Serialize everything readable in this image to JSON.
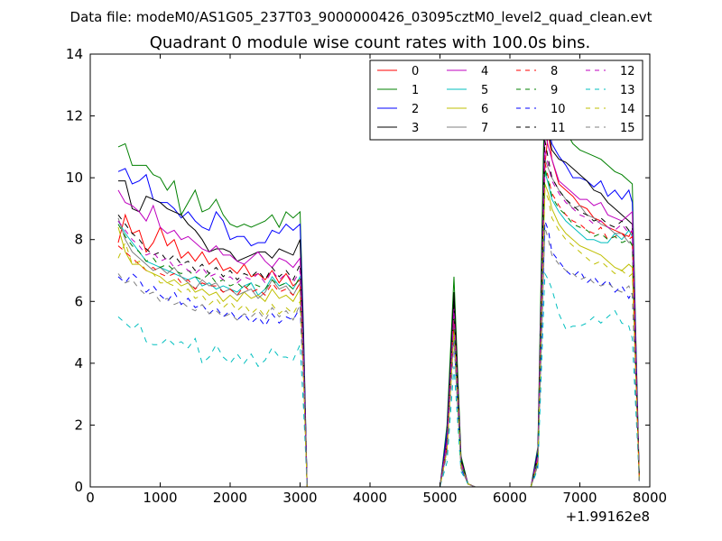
{
  "figure": {
    "supertitle": "Data file: modeM0/AS1G05_237T03_9000000426_03095cztM0_level2_quad_clean.evt"
  },
  "chart_data": {
    "type": "line",
    "title": "Quadrant 0 module wise count rates with 100.0s bins.",
    "xlabel": "",
    "ylabel": "",
    "x_offset_label": "+1.99162e8",
    "xlim": [
      0,
      8000
    ],
    "ylim": [
      0,
      14
    ],
    "xticks": [
      "0",
      "1000",
      "2000",
      "3000",
      "4000",
      "5000",
      "6000",
      "7000",
      "8000"
    ],
    "yticks": [
      "0",
      "2",
      "4",
      "6",
      "8",
      "10",
      "12",
      "14"
    ],
    "grid": false,
    "legend_position": "top-right",
    "legend_columns": 4,
    "x": [
      400,
      500,
      600,
      700,
      800,
      900,
      1000,
      1100,
      1200,
      1300,
      1400,
      1500,
      1600,
      1700,
      1800,
      1900,
      2000,
      2100,
      2200,
      2300,
      2400,
      2500,
      2600,
      2700,
      2800,
      2900,
      3000,
      3050,
      3100,
      3200,
      3400,
      3600,
      3800,
      4000,
      4200,
      4400,
      4600,
      4800,
      5000,
      5100,
      5200,
      5300,
      5400,
      5500,
      5600,
      5800,
      6000,
      6200,
      6300,
      6400,
      6500,
      6550,
      6600,
      6700,
      6800,
      6900,
      7000,
      7100,
      7200,
      7300,
      7400,
      7500,
      7600,
      7700,
      7750,
      7800,
      7850
    ],
    "series": [
      {
        "name": "0",
        "color": "#ff0000",
        "dash": "solid",
        "values": [
          7.9,
          8.8,
          8.2,
          8.3,
          7.6,
          7.9,
          8.4,
          7.8,
          8.0,
          7.4,
          7.6,
          7.3,
          7.6,
          7.2,
          7.4,
          7.0,
          7.1,
          6.9,
          7.2,
          6.8,
          6.9,
          6.7,
          7.0,
          6.6,
          6.9,
          6.5,
          6.7,
          4.0,
          0,
          0,
          0,
          0,
          0,
          0,
          0,
          0,
          0,
          0,
          0,
          1.4,
          5.4,
          0.8,
          0.1,
          0,
          0,
          0,
          0,
          0,
          0,
          0.9,
          10.4,
          11.5,
          10.6,
          9.8,
          9.6,
          9.4,
          9.1,
          9.0,
          8.7,
          8.6,
          8.4,
          8.3,
          8.2,
          8.1,
          8.3,
          4.0,
          0.3
        ]
      },
      {
        "name": "1",
        "color": "#008000",
        "dash": "solid",
        "values": [
          11.0,
          11.1,
          10.4,
          10.4,
          10.4,
          10.1,
          10.0,
          9.6,
          9.9,
          8.8,
          9.2,
          9.6,
          8.9,
          9.0,
          9.3,
          8.8,
          8.5,
          8.4,
          8.5,
          8.4,
          8.5,
          8.6,
          8.8,
          8.4,
          8.9,
          8.7,
          8.9,
          5.0,
          0,
          0,
          0,
          0,
          0,
          0,
          0,
          0,
          0,
          0,
          0,
          2.0,
          6.8,
          1.0,
          0.1,
          0,
          0,
          0,
          0,
          0,
          0,
          1.3,
          13.4,
          12.9,
          12.5,
          11.9,
          11.5,
          11.1,
          10.9,
          10.8,
          10.7,
          10.6,
          10.4,
          10.2,
          10.1,
          9.9,
          9.8,
          4.9,
          0.3
        ]
      },
      {
        "name": "2",
        "color": "#0000ff",
        "dash": "solid",
        "values": [
          10.2,
          10.3,
          9.8,
          9.9,
          10.1,
          9.3,
          9.2,
          9.2,
          9.0,
          8.7,
          8.9,
          8.6,
          8.4,
          8.3,
          8.9,
          8.6,
          8.0,
          8.1,
          8.1,
          7.8,
          7.9,
          7.9,
          8.3,
          8.2,
          8.5,
          8.3,
          8.5,
          4.8,
          0,
          0,
          0,
          0,
          0,
          0,
          0,
          0,
          0,
          0,
          0,
          1.8,
          6.1,
          0.9,
          0.1,
          0,
          0,
          0,
          0,
          0,
          0,
          1.2,
          11.8,
          11.7,
          11.1,
          10.7,
          10.4,
          10.0,
          10.0,
          9.9,
          9.7,
          9.9,
          9.4,
          9.6,
          9.3,
          9.6,
          9.2,
          4.7,
          0.2
        ]
      },
      {
        "name": "3",
        "color": "#000000",
        "dash": "solid",
        "values": [
          9.9,
          9.9,
          9.0,
          8.9,
          9.4,
          9.3,
          9.2,
          9.0,
          8.9,
          8.8,
          8.5,
          8.3,
          8.0,
          7.6,
          7.7,
          7.7,
          7.6,
          7.3,
          7.4,
          7.5,
          7.6,
          7.6,
          7.4,
          7.7,
          7.6,
          7.5,
          8.0,
          4.5,
          0,
          0,
          0,
          0,
          0,
          0,
          0,
          0,
          0,
          0,
          0,
          1.6,
          6.3,
          0.9,
          0.1,
          0,
          0,
          0,
          0,
          0,
          0,
          1.1,
          12.0,
          11.5,
          10.9,
          10.6,
          10.5,
          10.3,
          10.1,
          9.9,
          9.6,
          9.5,
          9.2,
          9.0,
          8.8,
          8.6,
          8.5,
          4.3,
          0.2
        ]
      },
      {
        "name": "4",
        "color": "#bf00bf",
        "dash": "solid",
        "values": [
          9.6,
          9.2,
          9.1,
          8.9,
          8.6,
          9.1,
          8.4,
          8.2,
          8.3,
          8.0,
          8.1,
          7.9,
          7.7,
          7.6,
          7.8,
          7.5,
          7.5,
          7.3,
          7.2,
          7.4,
          7.6,
          7.3,
          7.1,
          7.4,
          7.3,
          7.1,
          7.4,
          4.2,
          0,
          0,
          0,
          0,
          0,
          0,
          0,
          0,
          0,
          0,
          0,
          1.5,
          5.8,
          0.8,
          0.1,
          0,
          0,
          0,
          0,
          0,
          0,
          1.0,
          11.5,
          11.0,
          10.6,
          9.9,
          9.7,
          9.5,
          9.3,
          9.3,
          9.1,
          9.2,
          8.8,
          8.7,
          8.6,
          8.8,
          8.9,
          4.3,
          0.2
        ]
      },
      {
        "name": "5",
        "color": "#00bfbf",
        "dash": "solid",
        "values": [
          8.6,
          8.2,
          7.9,
          7.6,
          7.3,
          7.2,
          7.1,
          7.0,
          6.9,
          6.8,
          6.7,
          6.8,
          6.5,
          6.6,
          6.4,
          6.5,
          6.4,
          6.3,
          6.5,
          6.6,
          6.2,
          6.4,
          6.8,
          6.5,
          6.6,
          6.4,
          6.8,
          3.9,
          0,
          0,
          0,
          0,
          0,
          0,
          0,
          0,
          0,
          0,
          0,
          1.3,
          5.3,
          0.7,
          0.1,
          0,
          0,
          0,
          0,
          0,
          0,
          0.9,
          10.2,
          9.8,
          9.3,
          8.9,
          8.6,
          8.4,
          8.2,
          8.0,
          8.0,
          7.9,
          7.9,
          8.2,
          8.0,
          8.3,
          8.1,
          4.0,
          0.2
        ]
      },
      {
        "name": "6",
        "color": "#bfbf00",
        "dash": "solid",
        "values": [
          8.4,
          7.6,
          7.2,
          7.2,
          7.0,
          6.9,
          6.8,
          6.6,
          6.7,
          6.5,
          6.6,
          6.3,
          6.4,
          6.2,
          6.3,
          6.0,
          6.2,
          6.0,
          6.3,
          6.1,
          6.2,
          6.0,
          6.4,
          6.1,
          6.2,
          6.0,
          6.4,
          3.6,
          0,
          0,
          0,
          0,
          0,
          0,
          0,
          0,
          0,
          0,
          0,
          1.2,
          5.0,
          0.7,
          0.1,
          0,
          0,
          0,
          0,
          0,
          0,
          0.8,
          9.8,
          9.5,
          9.0,
          8.5,
          8.2,
          8.0,
          7.8,
          7.7,
          7.6,
          7.5,
          7.3,
          7.1,
          7.0,
          7.2,
          7.1,
          3.6,
          0.2
        ]
      },
      {
        "name": "7",
        "color": "#808080",
        "dash": "solid",
        "values": [
          8.7,
          8.0,
          7.6,
          7.4,
          7.2,
          7.0,
          7.1,
          6.9,
          7.1,
          6.8,
          6.6,
          6.4,
          6.7,
          6.5,
          6.6,
          6.3,
          6.4,
          6.2,
          6.3,
          6.4,
          6.1,
          6.3,
          6.7,
          6.4,
          6.5,
          6.2,
          6.6,
          3.7,
          0,
          0,
          0,
          0,
          0,
          0,
          0,
          0,
          0,
          0,
          0,
          1.2,
          5.2,
          0.7,
          0.1,
          0,
          0,
          0,
          0,
          0,
          0,
          0.8,
          10.6,
          10.3,
          10.0,
          9.6,
          9.3,
          9.0,
          9.1,
          8.8,
          8.7,
          8.5,
          8.4,
          8.2,
          8.2,
          7.9,
          7.9,
          3.9,
          0.2
        ]
      },
      {
        "name": "8",
        "color": "#ff0000",
        "dash": "dashed",
        "values": [
          7.8,
          7.6,
          7.4,
          7.2,
          7.0,
          7.1,
          6.9,
          6.8,
          6.9,
          6.6,
          6.7,
          6.4,
          6.6,
          6.5,
          6.5,
          6.3,
          6.4,
          6.2,
          6.5,
          6.3,
          6.4,
          6.2,
          6.6,
          6.3,
          6.4,
          6.2,
          6.6,
          3.7,
          0,
          0,
          0,
          0,
          0,
          0,
          0,
          0,
          0,
          0,
          0,
          1.3,
          5.3,
          0.7,
          0.1,
          0,
          0,
          0,
          0,
          0,
          0,
          0.9,
          10.5,
          10.0,
          9.5,
          9.1,
          8.8,
          8.6,
          8.5,
          8.3,
          8.2,
          8.4,
          8.0,
          8.1,
          8.2,
          8.0,
          8.1,
          4.0,
          0.2
        ]
      },
      {
        "name": "9",
        "color": "#008000",
        "dash": "dashed",
        "values": [
          8.5,
          8.1,
          7.8,
          7.6,
          7.3,
          7.4,
          7.1,
          7.2,
          7.0,
          6.9,
          7.0,
          6.8,
          6.7,
          6.9,
          6.6,
          6.7,
          6.5,
          6.6,
          6.4,
          6.6,
          6.5,
          6.4,
          6.7,
          6.5,
          6.6,
          6.4,
          6.8,
          3.8,
          0,
          0,
          0,
          0,
          0,
          0,
          0,
          0,
          0,
          0,
          0,
          1.4,
          5.6,
          0.8,
          0.1,
          0,
          0,
          0,
          0,
          0,
          0,
          0.9,
          10.3,
          9.9,
          9.4,
          9.0,
          8.8,
          8.5,
          8.4,
          8.3,
          8.1,
          8.2,
          8.0,
          8.1,
          7.9,
          8.0,
          7.8,
          3.9,
          0.2
        ]
      },
      {
        "name": "10",
        "color": "#0000ff",
        "dash": "dashed",
        "values": [
          6.8,
          6.6,
          6.9,
          6.7,
          6.3,
          6.5,
          6.2,
          6.0,
          6.3,
          5.9,
          6.1,
          5.8,
          5.9,
          5.6,
          5.8,
          5.5,
          5.7,
          5.4,
          5.6,
          5.3,
          5.5,
          5.2,
          5.6,
          5.3,
          5.5,
          5.4,
          5.8,
          3.3,
          0,
          0,
          0,
          0,
          0,
          0,
          0,
          0,
          0,
          0,
          0,
          1.1,
          4.8,
          0.6,
          0.1,
          0,
          0,
          0,
          0,
          0,
          0,
          0.7,
          8.6,
          8.3,
          7.6,
          7.3,
          7.0,
          6.8,
          7.0,
          6.6,
          6.8,
          6.5,
          6.7,
          6.3,
          6.5,
          6.1,
          6.3,
          3.1,
          0.2
        ]
      },
      {
        "name": "11",
        "color": "#000000",
        "dash": "dashed",
        "values": [
          8.8,
          8.5,
          8.2,
          8.0,
          7.7,
          7.5,
          7.6,
          7.3,
          7.5,
          7.2,
          7.3,
          7.0,
          7.2,
          6.9,
          7.1,
          6.8,
          7.0,
          6.7,
          6.9,
          6.8,
          7.0,
          6.7,
          7.1,
          6.8,
          7.0,
          6.7,
          7.2,
          4.0,
          0,
          0,
          0,
          0,
          0,
          0,
          0,
          0,
          0,
          0,
          0,
          1.4,
          5.9,
          0.8,
          0.1,
          0,
          0,
          0,
          0,
          0,
          0,
          1.0,
          11.2,
          10.6,
          10.0,
          9.6,
          9.3,
          9.1,
          8.9,
          8.8,
          8.6,
          8.7,
          8.5,
          8.4,
          8.6,
          8.3,
          8.4,
          4.2,
          0.2
        ]
      },
      {
        "name": "12",
        "color": "#bf00bf",
        "dash": "dashed",
        "values": [
          8.6,
          8.3,
          8.0,
          7.8,
          7.5,
          7.6,
          7.3,
          7.4,
          7.1,
          7.2,
          7.0,
          6.9,
          7.1,
          6.8,
          6.9,
          6.7,
          6.8,
          6.6,
          6.8,
          6.7,
          6.9,
          6.6,
          7.0,
          6.7,
          6.9,
          6.6,
          7.0,
          3.9,
          0,
          0,
          0,
          0,
          0,
          0,
          0,
          0,
          0,
          0,
          0,
          1.4,
          5.7,
          0.8,
          0.1,
          0,
          0,
          0,
          0,
          0,
          0,
          1.0,
          10.9,
          10.4,
          9.9,
          9.5,
          9.2,
          9.0,
          8.8,
          8.7,
          8.5,
          8.6,
          8.4,
          8.3,
          8.5,
          8.2,
          8.3,
          4.1,
          0.2
        ]
      },
      {
        "name": "13",
        "color": "#00bfbf",
        "dash": "dashed",
        "values": [
          5.5,
          5.3,
          5.1,
          5.3,
          4.7,
          4.6,
          4.6,
          4.8,
          4.6,
          4.7,
          4.5,
          4.8,
          4.0,
          4.2,
          4.6,
          4.2,
          4.0,
          4.3,
          4.0,
          4.3,
          3.9,
          4.1,
          4.5,
          4.2,
          4.2,
          4.1,
          4.6,
          2.5,
          0,
          0,
          0,
          0,
          0,
          0,
          0,
          0,
          0,
          0,
          0,
          0.8,
          3.9,
          0.5,
          0.1,
          0,
          0,
          0,
          0,
          0,
          0,
          0.6,
          6.9,
          6.7,
          6.4,
          5.6,
          5.1,
          5.2,
          5.2,
          5.3,
          5.5,
          5.3,
          5.5,
          5.7,
          5.3,
          5.2,
          4.8,
          2.5,
          0.2
        ]
      },
      {
        "name": "14",
        "color": "#bfbf00",
        "dash": "dashed",
        "values": [
          7.4,
          7.9,
          7.2,
          7.3,
          7.0,
          6.9,
          6.6,
          6.6,
          6.5,
          6.3,
          6.4,
          6.1,
          6.2,
          5.9,
          6.1,
          5.8,
          6.0,
          5.7,
          5.9,
          5.6,
          5.8,
          5.5,
          5.9,
          5.6,
          5.8,
          5.6,
          6.0,
          3.4,
          0,
          0,
          0,
          0,
          0,
          0,
          0,
          0,
          0,
          0,
          0,
          1.2,
          5.0,
          0.7,
          0.1,
          0,
          0,
          0,
          0,
          0,
          0,
          0.8,
          9.6,
          9.3,
          8.7,
          8.3,
          8.0,
          7.8,
          7.6,
          7.4,
          7.2,
          7.3,
          7.1,
          6.9,
          7.0,
          6.8,
          6.9,
          3.5,
          0.2
        ]
      },
      {
        "name": "15",
        "color": "#808080",
        "dash": "dashed",
        "values": [
          6.9,
          6.6,
          6.7,
          6.4,
          6.2,
          6.3,
          6.0,
          6.1,
          5.9,
          6.0,
          5.8,
          5.7,
          5.9,
          5.6,
          5.7,
          5.5,
          5.6,
          5.4,
          5.6,
          5.5,
          5.7,
          5.4,
          5.8,
          5.5,
          5.7,
          5.4,
          5.9,
          3.3,
          0,
          0,
          0,
          0,
          0,
          0,
          0,
          0,
          0,
          0,
          0,
          1.1,
          4.7,
          0.6,
          0.1,
          0,
          0,
          0,
          0,
          0,
          0,
          0.7,
          8.4,
          8.0,
          7.5,
          7.2,
          7.0,
          6.9,
          6.7,
          6.8,
          6.6,
          6.5,
          6.6,
          6.4,
          6.3,
          6.5,
          6.2,
          3.1,
          0.2
        ]
      }
    ]
  }
}
